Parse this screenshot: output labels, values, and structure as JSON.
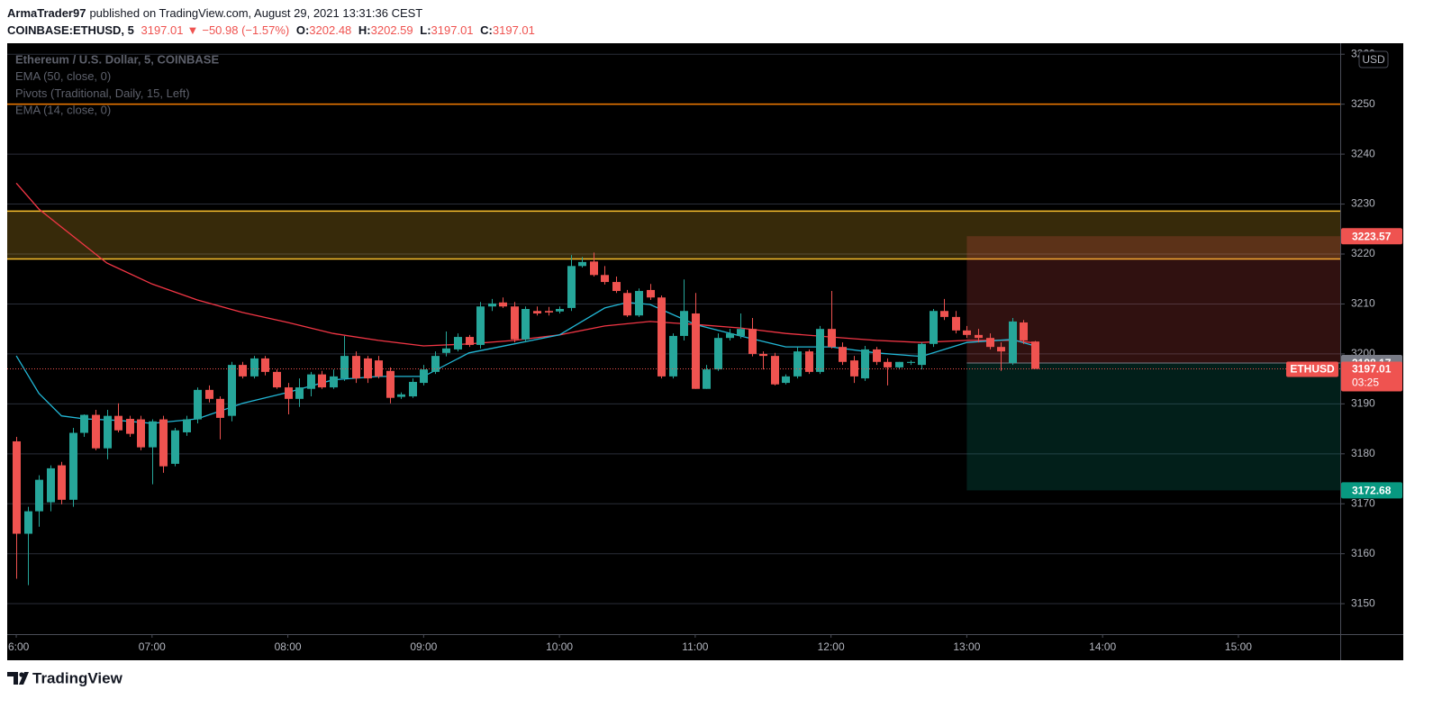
{
  "header": {
    "author": "ArmaTrader97",
    "published": "published on TradingView.com, August 29, 2021 13:31:36 CEST",
    "symbol": "COINBASE:ETHUSD, 5",
    "change_arrow": "▼",
    "change": "−50.98 (−1.57%)",
    "ohlc_labels": [
      "O:",
      "H:",
      "L:",
      "C:"
    ]
  },
  "footer": {
    "brand": "TradingView"
  },
  "chart_data": {
    "type": "candlestick",
    "title": "Ethereum / U.S. Dollar, 5, COINBASE",
    "x": [
      "06:00",
      "06:05",
      "06:10",
      "06:15",
      "06:20",
      "06:25",
      "06:30",
      "06:35",
      "06:40",
      "06:45",
      "06:50",
      "06:55",
      "07:00",
      "07:05",
      "07:10",
      "07:15",
      "07:20",
      "07:25",
      "07:30",
      "07:35",
      "07:40",
      "07:45",
      "07:50",
      "07:55",
      "08:00",
      "08:05",
      "08:10",
      "08:15",
      "08:20",
      "08:25",
      "08:30",
      "08:35",
      "08:40",
      "08:45",
      "08:50",
      "08:55",
      "09:00",
      "09:05",
      "09:10",
      "09:15",
      "09:20",
      "09:25",
      "09:30",
      "09:35",
      "09:40",
      "09:45",
      "09:50",
      "09:55",
      "10:00",
      "10:05",
      "10:10",
      "10:15",
      "10:20",
      "10:25",
      "10:30",
      "10:35",
      "10:40",
      "10:45",
      "10:50",
      "10:55",
      "11:00",
      "11:05",
      "11:10",
      "11:15",
      "11:20",
      "11:25",
      "11:30",
      "11:35",
      "11:40",
      "11:45",
      "11:50",
      "11:55",
      "12:00",
      "12:05",
      "12:10",
      "12:15",
      "12:20",
      "12:25",
      "12:30",
      "12:35",
      "12:40",
      "12:45",
      "12:50",
      "12:55",
      "13:00",
      "13:05",
      "13:10",
      "13:15",
      "13:20",
      "13:25",
      "13:30"
    ],
    "open": [
      3182.5,
      3164.0,
      3168.5,
      3170.3,
      3177.7,
      3170.8,
      3184.2,
      3187.8,
      3181.1,
      3187.6,
      3187.0,
      3186.9,
      3181.3,
      3186.9,
      3178.0,
      3184.3,
      3186.9,
      3192.8,
      3191.0,
      3187.6,
      3197.8,
      3195.5,
      3199.1,
      3196.4,
      3193.3,
      3191.0,
      3193.0,
      3195.9,
      3193.3,
      3195.1,
      3199.6,
      3199.1,
      3198.7,
      3196.6,
      3191.4,
      3191.5,
      3194.2,
      3196.4,
      3200.2,
      3200.9,
      3203.4,
      3201.8,
      3209.5,
      3210.3,
      3209.5,
      3202.9,
      3208.6,
      3208.6,
      3208.5,
      3209.2,
      3217.6,
      3218.5,
      3215.8,
      3214.4,
      3212.2,
      3207.7,
      3212.8,
      3211.3,
      3195.5,
      3203.6,
      3208.1,
      3193.0,
      3196.9,
      3203.2,
      3203.6,
      3205.0,
      3200.0,
      3199.6,
      3194.2,
      3195.5,
      3200.5,
      3196.4,
      3205.0,
      3201.4,
      3198.7,
      3195.1,
      3200.9,
      3198.4,
      3197.3,
      3198.2,
      3197.8,
      3202.0,
      3208.6,
      3207.4,
      3204.7,
      3203.8,
      3203.2,
      3201.4,
      3198.2,
      3206.3,
      3202.48
    ],
    "high": [
      3183.4,
      3169.4,
      3175.7,
      3177.7,
      3178.4,
      3185.2,
      3187.9,
      3188.8,
      3188.8,
      3190.1,
      3187.6,
      3187.6,
      3186.9,
      3187.6,
      3185.2,
      3187.6,
      3193.3,
      3193.7,
      3191.5,
      3198.4,
      3198.4,
      3199.6,
      3199.6,
      3196.9,
      3194.2,
      3195.1,
      3196.4,
      3196.6,
      3196.9,
      3203.6,
      3200.5,
      3199.6,
      3199.6,
      3197.3,
      3192.3,
      3195.1,
      3197.8,
      3200.5,
      3204.5,
      3204.1,
      3203.8,
      3210.4,
      3211.0,
      3211.3,
      3210.4,
      3209.5,
      3209.5,
      3209.4,
      3209.5,
      3219.8,
      3219.4,
      3220.3,
      3217.6,
      3215.5,
      3212.8,
      3213.1,
      3214.0,
      3211.7,
      3204.1,
      3214.9,
      3212.2,
      3197.8,
      3204.1,
      3205.0,
      3208.1,
      3207.2,
      3200.5,
      3200.2,
      3195.9,
      3201.4,
      3200.9,
      3205.6,
      3212.6,
      3202.3,
      3199.6,
      3201.6,
      3201.4,
      3199.1,
      3198.4,
      3198.7,
      3202.3,
      3209.0,
      3211.0,
      3208.6,
      3205.6,
      3205.0,
      3204.1,
      3202.3,
      3207.2,
      3206.8,
      3202.59
    ],
    "low": [
      3155.0,
      3153.7,
      3165.4,
      3168.5,
      3169.9,
      3169.4,
      3183.4,
      3180.7,
      3178.9,
      3184.3,
      3183.4,
      3180.7,
      3173.9,
      3176.2,
      3177.5,
      3183.6,
      3186.1,
      3190.3,
      3182.9,
      3186.5,
      3195.1,
      3195.1,
      3195.7,
      3193.0,
      3187.9,
      3189.4,
      3191.5,
      3193.0,
      3193.0,
      3194.6,
      3194.2,
      3194.2,
      3195.1,
      3190.1,
      3191.0,
      3191.2,
      3193.7,
      3196.0,
      3199.5,
      3200.5,
      3201.4,
      3201.1,
      3208.6,
      3209.2,
      3202.3,
      3202.3,
      3207.7,
      3207.7,
      3208.1,
      3208.6,
      3217.3,
      3215.5,
      3213.9,
      3212.2,
      3207.4,
      3207.4,
      3210.8,
      3195.1,
      3195.1,
      3202.7,
      3193.0,
      3193.0,
      3196.6,
      3202.7,
      3203.1,
      3199.5,
      3196.9,
      3193.7,
      3193.9,
      3195.1,
      3196.0,
      3196.0,
      3201.1,
      3197.8,
      3194.2,
      3194.6,
      3197.8,
      3193.7,
      3196.9,
      3197.8,
      3196.9,
      3201.4,
      3206.8,
      3204.1,
      3203.2,
      3202.3,
      3200.9,
      3196.6,
      3197.8,
      3202.0,
      3197.01
    ],
    "close": [
      3164.0,
      3168.5,
      3174.8,
      3177.1,
      3170.8,
      3184.2,
      3187.8,
      3181.1,
      3187.6,
      3184.7,
      3184.0,
      3181.3,
      3186.5,
      3177.5,
      3184.7,
      3186.9,
      3192.8,
      3191.0,
      3187.2,
      3197.8,
      3195.5,
      3199.1,
      3196.4,
      3193.3,
      3191.0,
      3193.3,
      3195.9,
      3193.3,
      3195.5,
      3199.6,
      3195.1,
      3195.1,
      3195.5,
      3191.2,
      3191.9,
      3194.4,
      3196.9,
      3199.6,
      3201.1,
      3203.4,
      3201.8,
      3209.5,
      3210.1,
      3209.5,
      3202.9,
      3209.0,
      3208.1,
      3208.3,
      3209.0,
      3217.6,
      3218.4,
      3215.8,
      3214.4,
      3212.6,
      3207.7,
      3212.6,
      3211.3,
      3195.5,
      3203.6,
      3208.6,
      3193.0,
      3196.9,
      3203.2,
      3204.1,
      3205.0,
      3200.0,
      3199.6,
      3193.9,
      3195.5,
      3200.5,
      3196.4,
      3205.0,
      3201.4,
      3198.4,
      3195.5,
      3200.9,
      3198.4,
      3197.3,
      3198.4,
      3198.4,
      3202.0,
      3208.6,
      3207.4,
      3204.7,
      3203.8,
      3203.2,
      3201.4,
      3200.5,
      3206.5,
      3202.7,
      3197.01
    ],
    "up_color": "#26a69a",
    "down_color": "#ef5350",
    "indicators": [
      {
        "name": "EMA (50, close, 0)",
        "color": "#f23645",
        "x": [
          "06:00",
          "06:10",
          "06:20",
          "06:30",
          "06:40",
          "07:00",
          "07:20",
          "07:40",
          "08:00",
          "08:20",
          "08:40",
          "09:00",
          "09:20",
          "09:40",
          "10:00",
          "10:20",
          "10:40",
          "11:00",
          "11:20",
          "11:40",
          "12:00",
          "12:20",
          "12:40",
          "13:00",
          "13:20",
          "13:30"
        ],
        "values": [
          3234.2,
          3229.0,
          3225.4,
          3221.8,
          3218.2,
          3214.0,
          3210.8,
          3208.3,
          3206.3,
          3204.1,
          3202.7,
          3201.6,
          3202.0,
          3202.7,
          3203.8,
          3205.6,
          3206.5,
          3205.9,
          3205.2,
          3204.1,
          3203.4,
          3202.7,
          3202.3,
          3202.7,
          3202.7,
          3202.2
        ]
      },
      {
        "name": "Pivots (Traditional, Daily, 15, Left)",
        "levels": [
          {
            "value": 3250,
            "color": "#f57c00"
          },
          {
            "value": 3228.6,
            "color": "#fbc02d"
          },
          {
            "value": 3219,
            "color": "#fbc02d"
          }
        ],
        "band_fill": "rgba(251,192,45,0.22)"
      },
      {
        "name": "EMA (14, close, 0)",
        "color": "#22b7d6",
        "x": [
          "06:00",
          "06:10",
          "06:20",
          "06:30",
          "06:45",
          "07:00",
          "07:20",
          "07:40",
          "08:00",
          "08:20",
          "08:40",
          "09:00",
          "09:20",
          "09:40",
          "10:00",
          "10:20",
          "10:30",
          "10:40",
          "11:00",
          "11:20",
          "11:40",
          "12:00",
          "12:20",
          "12:40",
          "13:00",
          "13:20",
          "13:30"
        ],
        "values": [
          3199.6,
          3192.1,
          3187.6,
          3187.0,
          3186.7,
          3186.1,
          3187.0,
          3190.1,
          3192.3,
          3194.8,
          3195.5,
          3195.5,
          3200.2,
          3202.0,
          3203.8,
          3209.2,
          3210.3,
          3209.9,
          3205.9,
          3203.6,
          3201.4,
          3201.4,
          3200.2,
          3199.5,
          3202.3,
          3202.9,
          3201.6
        ]
      }
    ],
    "position": {
      "start": "13:00",
      "entry": 3198.17,
      "stop": 3223.57,
      "target": 3172.68,
      "stop_color": "#ef5350",
      "target_color": "#089981"
    },
    "last_price_label": "ETHUSD",
    "countdown": "03:25",
    "currency": "USD",
    "xlim": [
      "05:56",
      "15:45"
    ],
    "xticks": [
      {
        "value": "06:00",
        "label": "6:00"
      },
      "07:00",
      "08:00",
      "09:00",
      "10:00",
      "11:00",
      "12:00",
      "13:00",
      "14:00",
      "15:00"
    ],
    "ylim": [
      3143.9,
      3262.2
    ],
    "yticks": [
      3150,
      3160,
      3170,
      3180,
      3190,
      3200,
      3210,
      3220,
      3230,
      3240,
      3250,
      3260
    ],
    "grid": true
  }
}
